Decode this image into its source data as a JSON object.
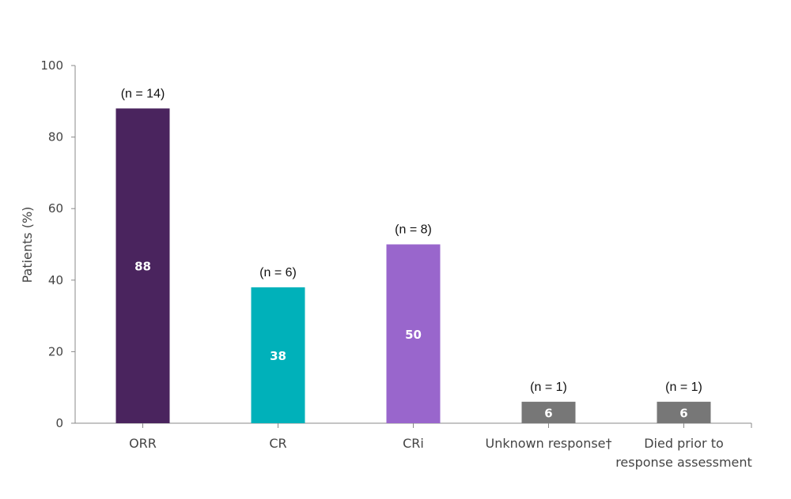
{
  "chart_data": {
    "type": "bar",
    "title": "",
    "xlabel": "",
    "ylabel": "Patients (%)",
    "ylim": [
      0,
      100
    ],
    "yticks": [
      0,
      20,
      40,
      60,
      80,
      100
    ],
    "grid": false,
    "categories": [
      [
        "ORR"
      ],
      [
        "CR"
      ],
      [
        "CRi"
      ],
      [
        "Unknown response†"
      ],
      [
        "Died prior to",
        "response assessment"
      ]
    ],
    "values": [
      88,
      38,
      50,
      6,
      6
    ],
    "value_labels": [
      "88",
      "38",
      "50",
      "6",
      "6"
    ],
    "n_labels": [
      "(n = 14)",
      "(n = 6)",
      "(n = 8)",
      "(n = 1)",
      "(n = 1)"
    ],
    "colors": [
      "#4a245e",
      "#00b1ba",
      "#9966cc",
      "#777777",
      "#777777"
    ]
  }
}
